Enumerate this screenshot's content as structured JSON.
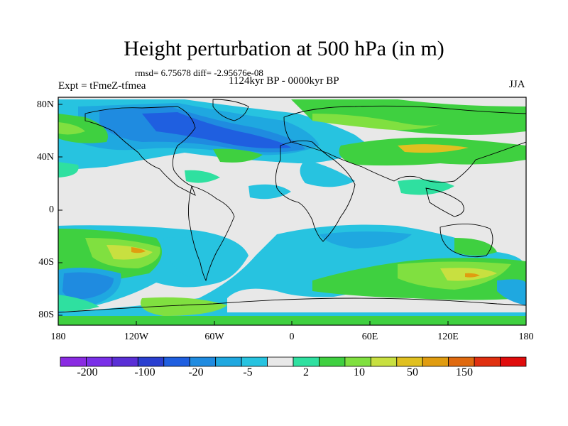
{
  "header": {
    "title": "Height perturbation at 500 hPa (in m)",
    "stats": "rmsd= 6.75678 diff= -2.95676e-08",
    "period": "1124kyr BP - 0000kyr BP",
    "experiment": "Expt = tFmeZ-tfmea",
    "season": "JJA"
  },
  "axes": {
    "y_ticks": [
      "80N",
      "40N",
      "0",
      "40S",
      "80S"
    ],
    "x_ticks": [
      "180",
      "120W",
      "60W",
      "0",
      "60E",
      "120E",
      "180"
    ]
  },
  "colorbar": {
    "colors": [
      "#8a2be2",
      "#7a30e8",
      "#5a2fd6",
      "#2a3fd0",
      "#1f5fe0",
      "#1f8be0",
      "#1fa8e0",
      "#27c3e0",
      "#e8e8e8",
      "#2fe0a0",
      "#3fd040",
      "#80e040",
      "#c8e040",
      "#e0c020",
      "#e09c10",
      "#e06a10",
      "#e03010",
      "#e00c0c"
    ],
    "labels": [
      "-200",
      "-100",
      "-20",
      "-5",
      "2",
      "10",
      "50",
      "150"
    ]
  },
  "map_palette": {
    "background": "#e8e8e8",
    "cyan": "#27c3e0",
    "sky": "#1fa8e0",
    "blue": "#1f8be0",
    "deep_blue": "#1f5fe0",
    "teal": "#2fe0a0",
    "green": "#3fd040",
    "lime": "#80e040",
    "yellow_green": "#c8e040",
    "yellow": "#e0c020",
    "orange": "#e09c10"
  }
}
